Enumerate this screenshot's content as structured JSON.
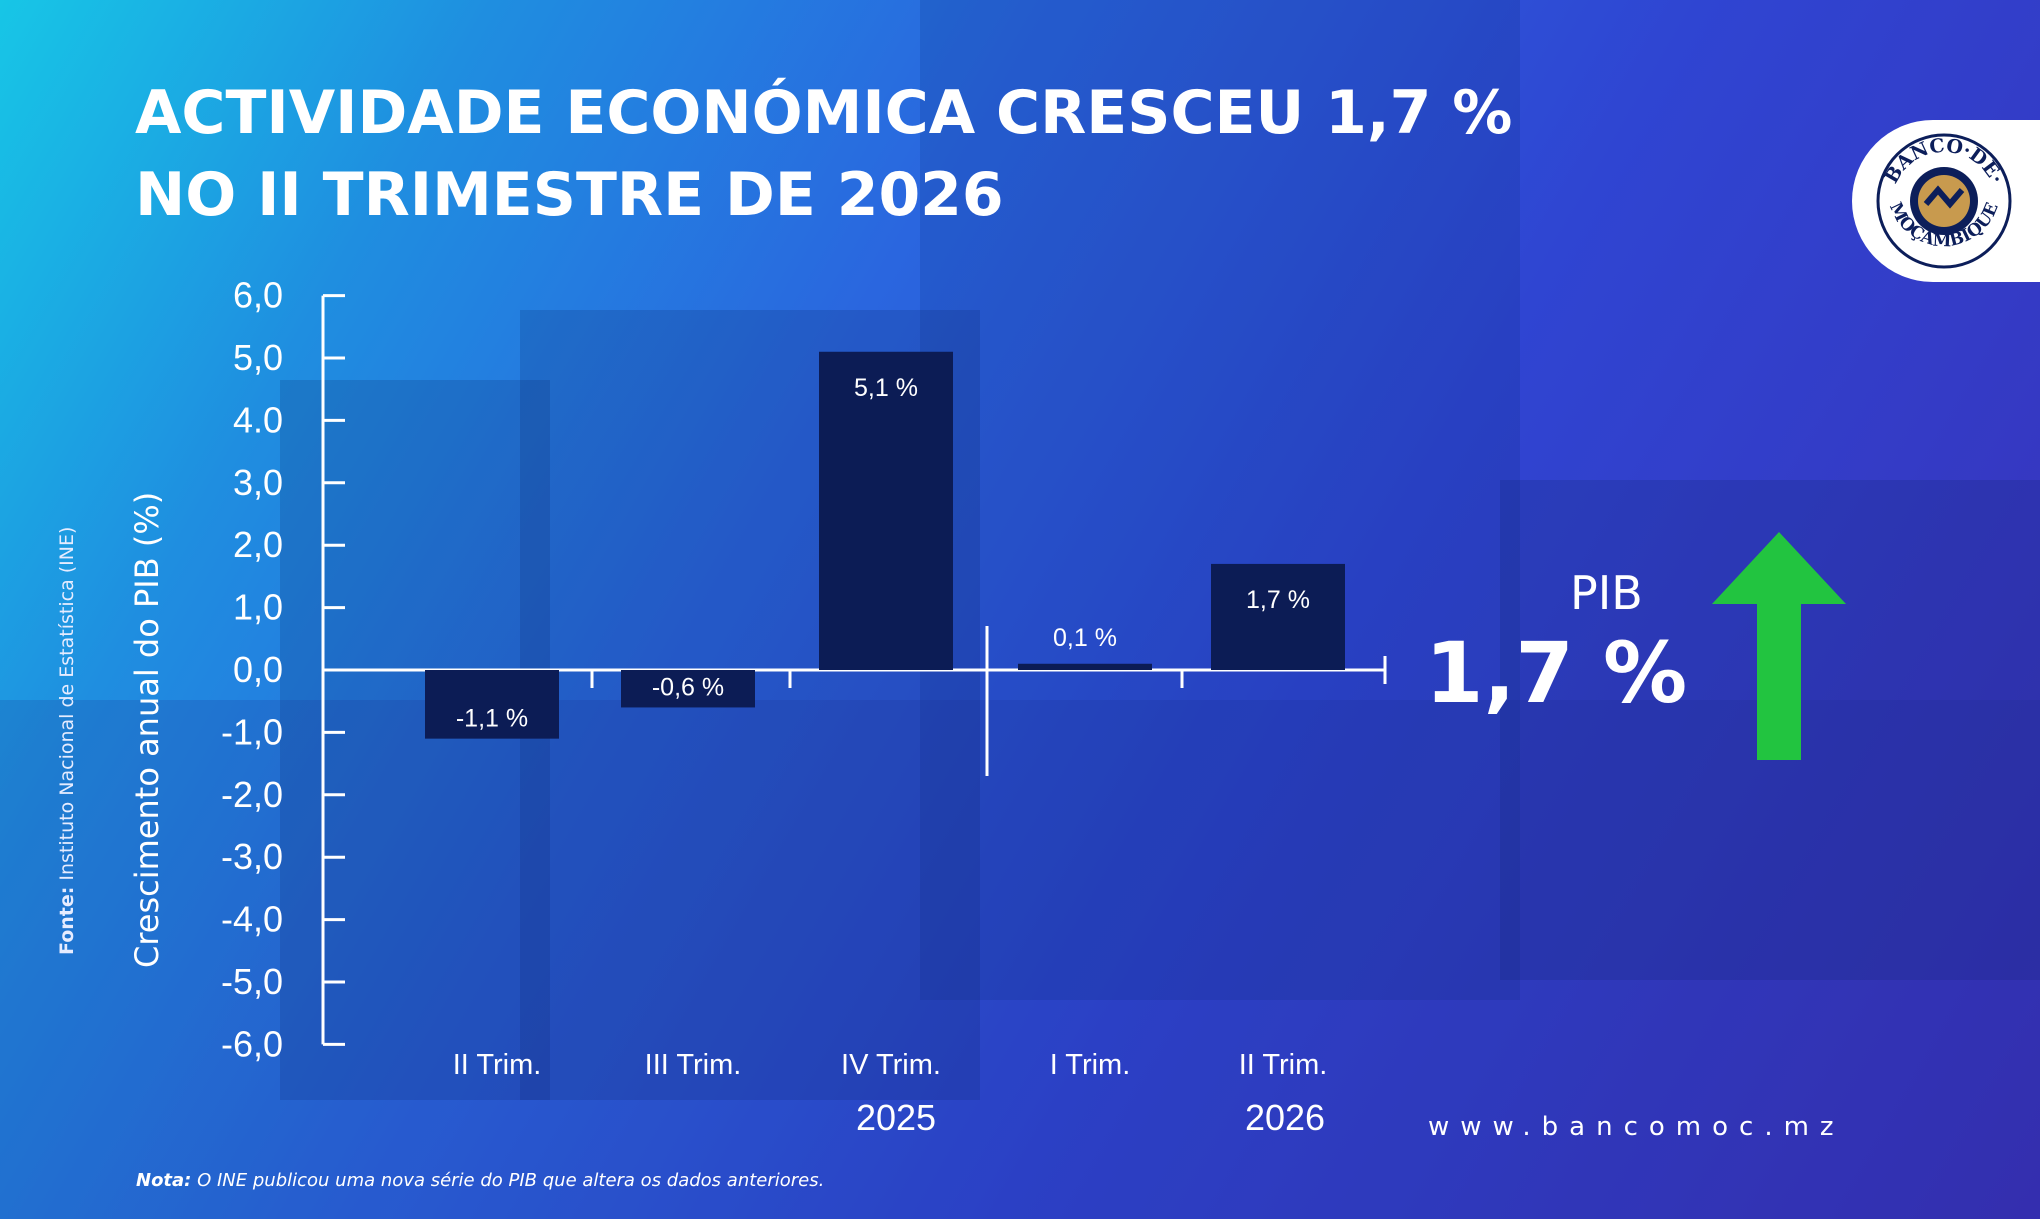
{
  "title": {
    "line1": "ACTIVIDADE ECONÓMICA CRESCEU 1,7 %",
    "line2": "NO II TRIMESTRE DE 2026"
  },
  "logo": {
    "text_top": "BANCO·DE·",
    "text_bottom": "MOÇAMBIQUE",
    "colors": {
      "ring": "#0c1e5a",
      "emblem": "#c89a4e",
      "background": "#ffffff"
    }
  },
  "highlight": {
    "label": "PIB",
    "value": "1,7 %",
    "arrow_color": "#22c440"
  },
  "website": "www.bancomoc.mz",
  "note": {
    "label": "Nota:",
    "text": " O INE publicou uma nova série do PIB que altera os dados anteriores."
  },
  "source": {
    "label": "Fonte:",
    "text": " Instituto Nacional de Estatística (INE)"
  },
  "chart_data": {
    "type": "bar",
    "ylabel": "Crescimento anual do PIB (%)",
    "ylim": [
      -6,
      6
    ],
    "yticks": [
      "6,0",
      "5,0",
      "4.0",
      "3,0",
      "2,0",
      "1,0",
      "0,0",
      "-1,0",
      "-2,0",
      "-3,0",
      "-4,0",
      "-5,0",
      "-6,0"
    ],
    "categories": [
      "II Trim.",
      "III Trim.",
      "IV Trim.",
      "I Trim.",
      "II Trim."
    ],
    "groups": [
      "2025",
      "2025",
      "2025",
      "2026",
      "2026"
    ],
    "group_labels": [
      "2025",
      "2026"
    ],
    "values": [
      -1.1,
      -0.6,
      5.1,
      0.1,
      1.7
    ],
    "data_labels": [
      "-1,1 %",
      "-0,6 %",
      "5,1 %",
      "0,1 %",
      "1,7 %"
    ],
    "bar_color": "#0c1c55",
    "grid": false
  }
}
